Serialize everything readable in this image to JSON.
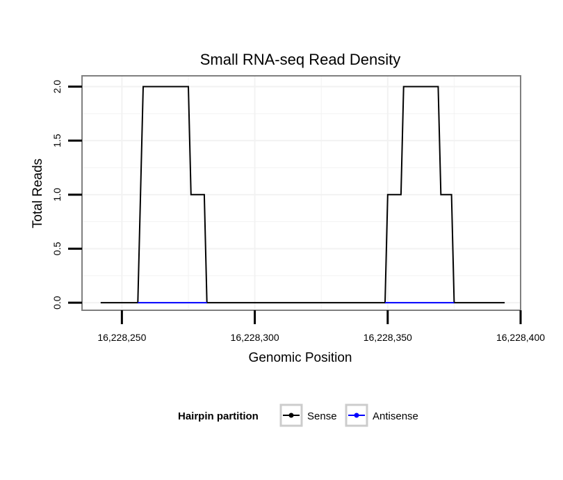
{
  "chart_data": {
    "type": "line",
    "title": "Small RNA-seq Read Density",
    "xlabel": "Genomic Position",
    "ylabel": "Total Reads",
    "xlim": [
      16228235,
      16228400
    ],
    "ylim": [
      -0.07,
      2.1
    ],
    "x_ticks": [
      16228250,
      16228300,
      16228350,
      16228400
    ],
    "x_tick_labels": [
      "16,228,250",
      "16,228,300",
      "16,228,350",
      "16,228,400"
    ],
    "y_ticks": [
      0.0,
      0.5,
      1.0,
      1.5,
      2.0
    ],
    "y_tick_labels": [
      "0.0",
      "0.5",
      "1.0",
      "1.5",
      "2.0"
    ],
    "grid": true,
    "legend": {
      "title": "Hairpin partition",
      "position": "bottom"
    },
    "series": [
      {
        "name": "Sense",
        "color": "#000000",
        "x": [
          16228242,
          16228256,
          16228258,
          16228275,
          16228276,
          16228281,
          16228282,
          16228349,
          16228350,
          16228355,
          16228356,
          16228369,
          16228370,
          16228374,
          16228375,
          16228394
        ],
        "y": [
          0,
          0,
          2,
          2,
          1,
          1,
          0,
          0,
          1,
          1,
          2,
          2,
          1,
          1,
          0,
          0
        ]
      },
      {
        "name": "Antisense",
        "color": "#0000ff",
        "x": [
          16228256,
          16228282,
          16228349,
          16228375
        ],
        "y": [
          0,
          0,
          null,
          null
        ],
        "segments": [
          [
            16228256,
            16228282
          ],
          [
            16228349,
            16228375
          ]
        ]
      }
    ]
  }
}
